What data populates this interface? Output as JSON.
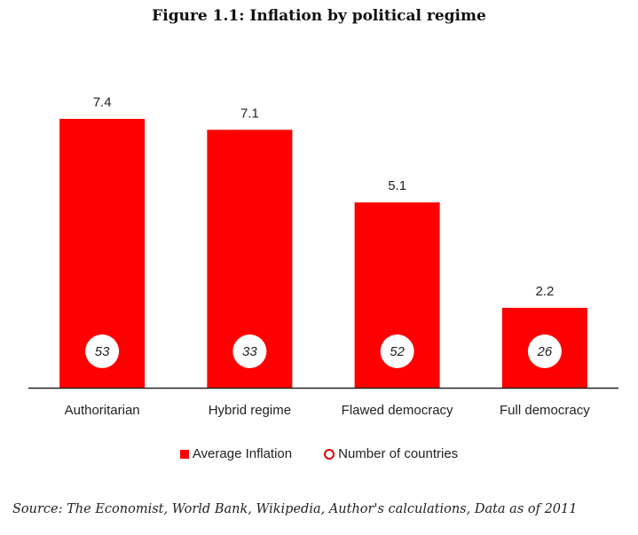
{
  "colors": {
    "bar": "#ff0000",
    "axis": "#222222",
    "circle_fill": "#ffffff",
    "circle_legend": "#e00000"
  },
  "chart_data": {
    "type": "bar",
    "title": "Figure 1.1: Inflation by political regime",
    "categories": [
      "Authoritarian",
      "Hybrid regime",
      "Flawed democracy",
      "Full democracy"
    ],
    "series": [
      {
        "name": "Average Inflation",
        "values": [
          7.4,
          7.1,
          5.1,
          2.2
        ]
      },
      {
        "name": "Number of countries",
        "values": [
          53,
          33,
          52,
          26
        ]
      }
    ],
    "xlabel": "",
    "ylabel": "",
    "ylim": [
      0,
      7.4
    ],
    "grid": false,
    "legend_position": "bottom",
    "legend": [
      "Average Inflation",
      "Number of countries"
    ],
    "source": "Source: The Economist, World Bank, Wikipedia, Author's calculations, Data as of 2011"
  }
}
